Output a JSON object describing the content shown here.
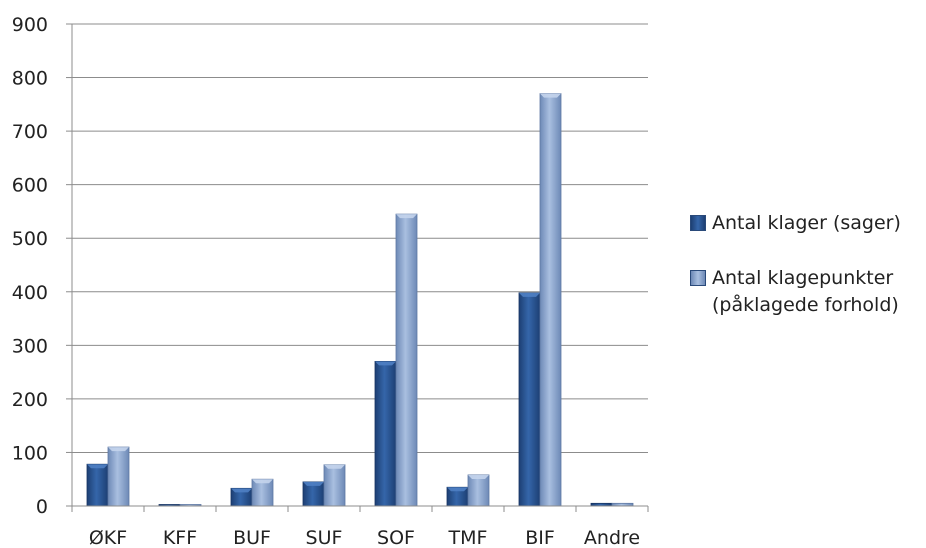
{
  "chart_data": {
    "type": "bar",
    "title": "",
    "xlabel": "",
    "ylabel": "",
    "ylim": [
      0,
      900
    ],
    "yticks": [
      0,
      100,
      200,
      300,
      400,
      500,
      600,
      700,
      800,
      900
    ],
    "grid": true,
    "legend_position": "right",
    "categories": [
      "ØKF",
      "KFF",
      "BUF",
      "SUF",
      "SOF",
      "TMF",
      "BIF",
      "Andre"
    ],
    "series": [
      {
        "name": "Antal klager (sager)",
        "color": "#2f5f9e",
        "values": [
          78,
          0,
          33,
          45,
          270,
          35,
          398,
          5
        ]
      },
      {
        "name": "Antal klagepunkter (påklagede forhold)",
        "color": "#8ea8cf",
        "values": [
          110,
          0,
          50,
          77,
          545,
          58,
          770,
          5
        ]
      }
    ]
  }
}
